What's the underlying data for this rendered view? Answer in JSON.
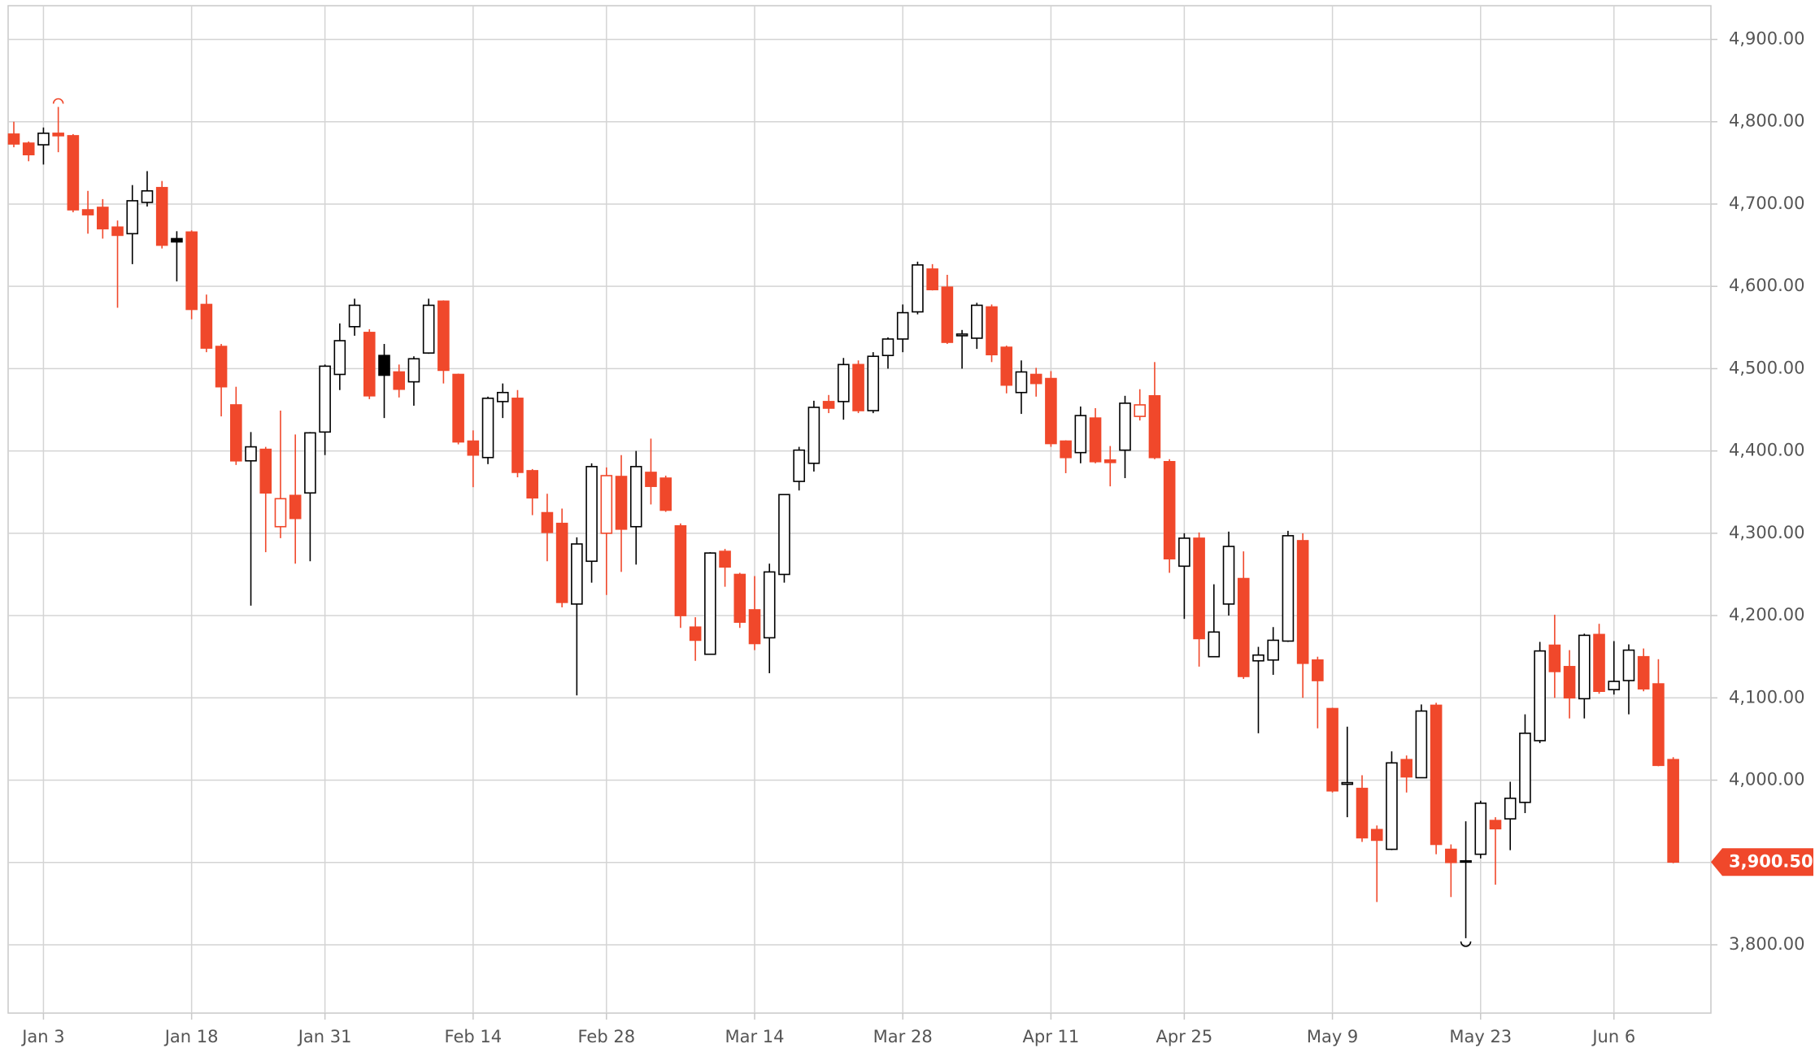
{
  "chart_data": {
    "type": "candlestick",
    "categories": [
      null,
      null,
      "Jan 3",
      null,
      null,
      null,
      null,
      null,
      null,
      null,
      null,
      null,
      "Jan 18",
      null,
      null,
      null,
      null,
      null,
      null,
      null,
      null,
      "Jan 31",
      null,
      null,
      null,
      null,
      null,
      null,
      null,
      null,
      null,
      "Feb 14",
      null,
      null,
      null,
      null,
      null,
      null,
      null,
      null,
      "Feb 28",
      null,
      null,
      null,
      null,
      null,
      null,
      null,
      null,
      null,
      "Mar 14",
      null,
      null,
      null,
      null,
      null,
      null,
      null,
      null,
      null,
      "Mar 28",
      null,
      null,
      null,
      null,
      null,
      null,
      null,
      null,
      null,
      "Apr 11",
      null,
      null,
      null,
      null,
      null,
      null,
      null,
      null,
      "Apr 25",
      null,
      null,
      null,
      null,
      null,
      null,
      null,
      null,
      null,
      "May 9",
      null,
      null,
      null,
      null,
      null,
      null,
      null,
      null,
      null,
      "May 23",
      null,
      null,
      null,
      null,
      null,
      null,
      null,
      null,
      "Jun 6",
      null,
      null,
      null,
      null
    ],
    "open": [
      4785,
      4774,
      4772,
      4786,
      4783,
      4693,
      4696,
      4672,
      4664,
      4702,
      4720,
      4658,
      4666,
      4578,
      4527,
      4456,
      4388,
      4402,
      4308,
      4346,
      4349,
      4423,
      4493,
      4551,
      4544,
      4516,
      4496,
      4484,
      4519,
      4582,
      4493,
      4412,
      4392,
      4460,
      4464,
      4376,
      4325,
      4312,
      4214,
      4266,
      4300,
      4369,
      4308,
      4374,
      4367,
      4309,
      4186,
      4153,
      4278,
      4250,
      4207,
      4173,
      4250,
      4363,
      4385,
      4460,
      4460,
      4505,
      4449,
      4516,
      4536,
      4569,
      4621,
      4599,
      4540,
      4537,
      4575,
      4526,
      4471,
      4493,
      4488,
      4412,
      4398,
      4440,
      4389,
      4401,
      4442,
      4467,
      4387,
      4260,
      4294,
      4150,
      4214,
      4245,
      4145,
      4146,
      4169,
      4291,
      4146,
      4087,
      3995,
      3990,
      3940,
      3916,
      4025,
      4003,
      4091,
      3916,
      3901,
      3910,
      3951,
      3953,
      3973,
      4048,
      4164,
      4138,
      4099,
      4177,
      4110,
      4121,
      4150,
      4117,
      4025
    ],
    "high": [
      4800,
      4776,
      4793,
      4818,
      4785,
      4716,
      4706,
      4680,
      4723,
      4740,
      4728,
      4667,
      4668,
      4590,
      4530,
      4478,
      4423,
      4405,
      4449,
      4420,
      4423,
      4505,
      4555,
      4585,
      4548,
      4530,
      4505,
      4515,
      4585,
      4583,
      4494,
      4425,
      4466,
      4482,
      4474,
      4378,
      4348,
      4330,
      4295,
      4385,
      4380,
      4395,
      4400,
      4415,
      4370,
      4312,
      4198,
      4277,
      4281,
      4252,
      4248,
      4263,
      4347,
      4405,
      4461,
      4468,
      4513,
      4510,
      4520,
      4538,
      4578,
      4630,
      4627,
      4614,
      4547,
      4580,
      4578,
      4528,
      4510,
      4501,
      4497,
      4413,
      4454,
      4452,
      4406,
      4467,
      4475,
      4508,
      4390,
      4300,
      4301,
      4238,
      4302,
      4278,
      4162,
      4186,
      4303,
      4300,
      4150,
      4088,
      4065,
      4006,
      3945,
      4035,
      4030,
      4092,
      4094,
      3922,
      3950,
      3975,
      3955,
      3998,
      4080,
      4168,
      4201,
      4158,
      4178,
      4190,
      4169,
      4165,
      4160,
      4147,
      4028
    ],
    "low": [
      4769,
      4752,
      4748,
      4763,
      4690,
      4664,
      4658,
      4574,
      4627,
      4697,
      4646,
      4606,
      4560,
      4520,
      4442,
      4383,
      4212,
      4277,
      4294,
      4263,
      4266,
      4395,
      4474,
      4540,
      4463,
      4440,
      4465,
      4455,
      4518,
      4482,
      4408,
      4356,
      4384,
      4440,
      4368,
      4322,
      4266,
      4210,
      4103,
      4240,
      4225,
      4253,
      4262,
      4335,
      4326,
      4185,
      4145,
      4153,
      4235,
      4185,
      4158,
      4130,
      4240,
      4352,
      4375,
      4446,
      4438,
      4446,
      4446,
      4500,
      4520,
      4566,
      4595,
      4530,
      4500,
      4524,
      4508,
      4470,
      4445,
      4466,
      4405,
      4373,
      4385,
      4385,
      4357,
      4367,
      4437,
      4390,
      4252,
      4196,
      4138,
      4150,
      4200,
      4123,
      4057,
      4128,
      4168,
      4100,
      4063,
      3985,
      3955,
      3925,
      3852,
      3915,
      3985,
      4003,
      3910,
      3858,
      3808,
      3905,
      3873,
      3915,
      3960,
      4045,
      4100,
      4075,
      4075,
      4105,
      4104,
      4080,
      4108,
      4017,
      3899
    ],
    "close": [
      4773,
      4760,
      4786,
      4783,
      4693,
      4687,
      4670,
      4662,
      4704,
      4716,
      4650,
      4654,
      4572,
      4525,
      4478,
      4388,
      4405,
      4349,
      4342,
      4318,
      4422,
      4503,
      4534,
      4577,
      4467,
      4492,
      4475,
      4512,
      4577,
      4498,
      4411,
      4395,
      4464,
      4471,
      4374,
      4343,
      4301,
      4216,
      4287,
      4381,
      4370,
      4305,
      4381,
      4357,
      4328,
      4200,
      4170,
      4276,
      4259,
      4192,
      4166,
      4253,
      4347,
      4401,
      4453,
      4452,
      4505,
      4449,
      4515,
      4536,
      4568,
      4626,
      4596,
      4532,
      4542,
      4577,
      4517,
      4480,
      4496,
      4482,
      4409,
      4392,
      4443,
      4387,
      4386,
      4458,
      4456,
      4392,
      4269,
      4294,
      4172,
      4180,
      4284,
      4126,
      4152,
      4170,
      4297,
      4142,
      4121,
      3987,
      3997,
      3930,
      3927,
      4021,
      4004,
      4084,
      3922,
      3900,
      3902,
      3972,
      3941,
      3978,
      4057,
      4157,
      4132,
      4100,
      4176,
      4108,
      4120,
      4158,
      4111,
      4018,
      3900.5
    ],
    "last_value_label": "3,900.50",
    "up_color": "#000000",
    "down_color": "#f0482b",
    "ylim": [
      3717,
      4941
    ],
    "yticks": [
      {
        "value": 3800,
        "label": "3,800.00"
      },
      {
        "value": 3900,
        "label": "3,900.00"
      },
      {
        "value": 4000,
        "label": "4,000.00"
      },
      {
        "value": 4100,
        "label": "4,100.00"
      },
      {
        "value": 4200,
        "label": "4,200.00"
      },
      {
        "value": 4300,
        "label": "4,300.00"
      },
      {
        "value": 4400,
        "label": "4,400.00"
      },
      {
        "value": 4500,
        "label": "4,500.00"
      },
      {
        "value": 4600,
        "label": "4,600.00"
      },
      {
        "value": 4700,
        "label": "4,700.00"
      },
      {
        "value": 4800,
        "label": "4,800.00"
      },
      {
        "value": 4900,
        "label": "4,900.00"
      }
    ],
    "grid": true
  }
}
